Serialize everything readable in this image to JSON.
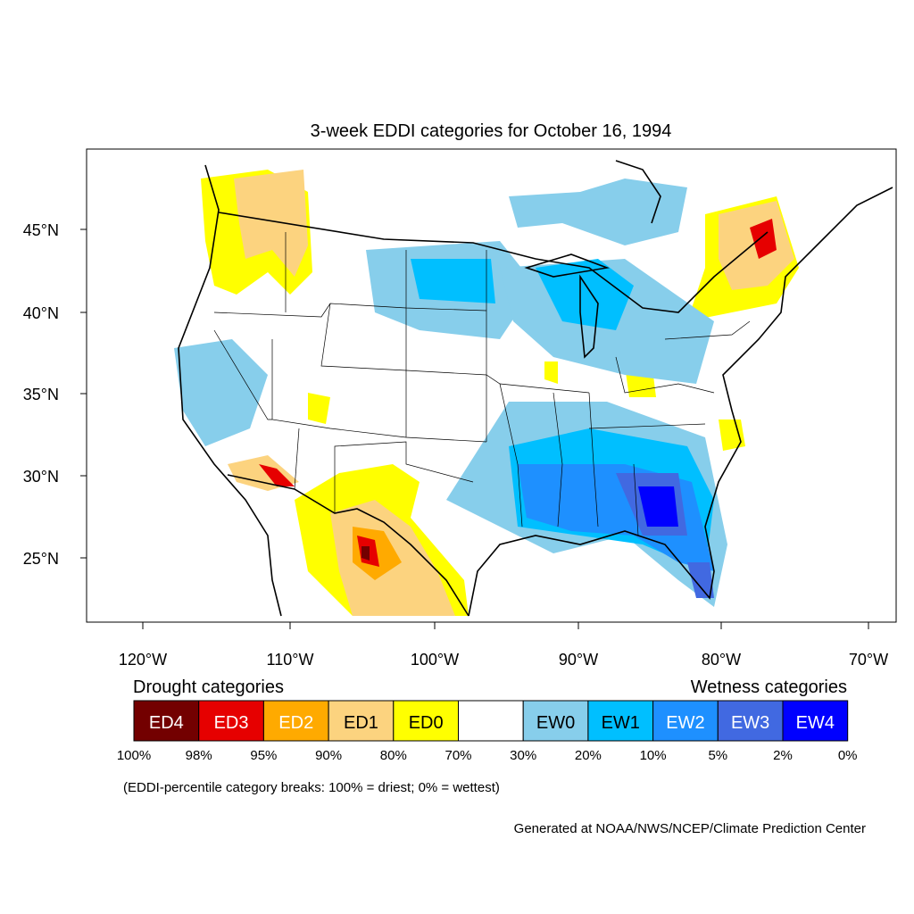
{
  "title": "3-week EDDI categories for October 16, 1994",
  "map": {
    "lat_labels": [
      "45°N",
      "40°N",
      "35°N",
      "30°N",
      "25°N"
    ],
    "lon_labels": [
      "120°W",
      "110°W",
      "100°W",
      "90°W",
      "80°W",
      "70°W"
    ]
  },
  "legend": {
    "drought_heading": "Drought categories",
    "wetness_heading": "Wetness categories",
    "categories": [
      {
        "label": "ED4",
        "color": "#730000",
        "text_color": "#ffffff"
      },
      {
        "label": "ED3",
        "color": "#e60000",
        "text_color": "#ffffff"
      },
      {
        "label": "ED2",
        "color": "#ffaa00",
        "text_color": "#ffffff"
      },
      {
        "label": "ED1",
        "color": "#fcd37f",
        "text_color": "#000000"
      },
      {
        "label": "ED0",
        "color": "#ffff00",
        "text_color": "#000000"
      },
      {
        "label": "",
        "color": "#ffffff",
        "text_color": "#000000"
      },
      {
        "label": "EW0",
        "color": "#87ceeb",
        "text_color": "#000000"
      },
      {
        "label": "EW1",
        "color": "#00bfff",
        "text_color": "#000000"
      },
      {
        "label": "EW2",
        "color": "#1e90ff",
        "text_color": "#ffffff"
      },
      {
        "label": "EW3",
        "color": "#4169e1",
        "text_color": "#ffffff"
      },
      {
        "label": "EW4",
        "color": "#0000ff",
        "text_color": "#ffffff"
      }
    ],
    "breaks": [
      "100%",
      "98%",
      "95%",
      "90%",
      "80%",
      "70%",
      "30%",
      "20%",
      "10%",
      "5%",
      "2%",
      "0%"
    ],
    "note": "(EDDI-percentile category breaks: 100% = driest; 0% = wettest)"
  },
  "credit": "Generated at NOAA/NWS/NCEP/Climate Prediction Center"
}
